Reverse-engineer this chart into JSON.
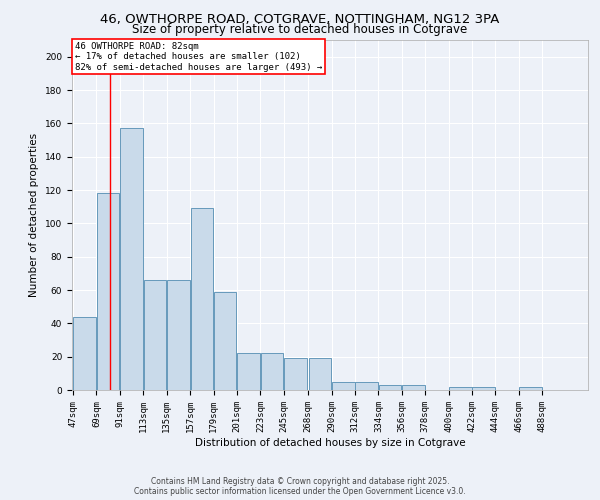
{
  "title_line1": "46, OWTHORPE ROAD, COTGRAVE, NOTTINGHAM, NG12 3PA",
  "title_line2": "Size of property relative to detached houses in Cotgrave",
  "xlabel": "Distribution of detached houses by size in Cotgrave",
  "ylabel": "Number of detached properties",
  "bar_color": "#c9daea",
  "bar_edge_color": "#6699bb",
  "background_color": "#edf1f8",
  "fig_background_color": "#edf1f8",
  "grid_color": "#ffffff",
  "bin_labels": [
    "47sqm",
    "69sqm",
    "91sqm",
    "113sqm",
    "135sqm",
    "157sqm",
    "179sqm",
    "201sqm",
    "223sqm",
    "245sqm",
    "268sqm",
    "290sqm",
    "312sqm",
    "334sqm",
    "356sqm",
    "378sqm",
    "400sqm",
    "422sqm",
    "444sqm",
    "466sqm",
    "488sqm"
  ],
  "bin_edges": [
    47,
    69,
    91,
    113,
    135,
    157,
    179,
    201,
    223,
    245,
    268,
    290,
    312,
    334,
    356,
    378,
    400,
    422,
    444,
    466,
    488,
    510
  ],
  "bar_heights": [
    44,
    118,
    157,
    66,
    66,
    109,
    59,
    22,
    22,
    19,
    19,
    5,
    5,
    3,
    3,
    0,
    2,
    2,
    0,
    2,
    0
  ],
  "red_line_x": 82,
  "ylim": [
    0,
    210
  ],
  "yticks": [
    0,
    20,
    40,
    60,
    80,
    100,
    120,
    140,
    160,
    180,
    200
  ],
  "annotation_text_line1": "46 OWTHORPE ROAD: 82sqm",
  "annotation_text_line2": "← 17% of detached houses are smaller (102)",
  "annotation_text_line3": "82% of semi-detached houses are larger (493) →",
  "footer_line1": "Contains HM Land Registry data © Crown copyright and database right 2025.",
  "footer_line2": "Contains public sector information licensed under the Open Government Licence v3.0.",
  "title_fontsize": 9.5,
  "subtitle_fontsize": 8.5,
  "axis_label_fontsize": 7.5,
  "tick_fontsize": 6.5,
  "annotation_fontsize": 6.5,
  "footer_fontsize": 5.5
}
